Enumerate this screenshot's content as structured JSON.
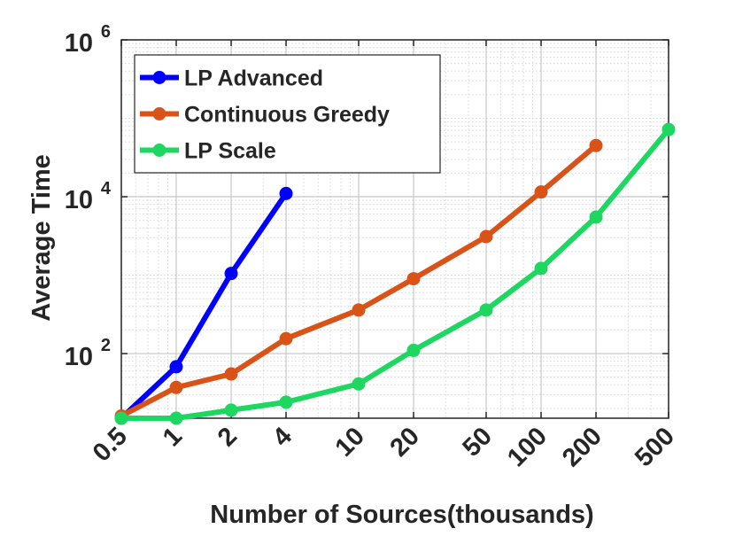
{
  "chart_data": {
    "type": "line",
    "title": "",
    "xlabel": "Number of Sources(thousands)",
    "ylabel": "Average Time",
    "x_scale": "log",
    "y_scale": "log",
    "xlim": [
      0.5,
      500
    ],
    "ylim": [
      15,
      1000000
    ],
    "grid": true,
    "legend_position": "top-left",
    "x_ticks": [
      0.5,
      1,
      2,
      4,
      10,
      20,
      50,
      100,
      200,
      500
    ],
    "x_tick_labels": [
      "0.5",
      "1",
      "2",
      "4",
      "10",
      "20",
      "50",
      "100",
      "200",
      "500"
    ],
    "y_ticks": [
      {
        "value": 100,
        "base": "10",
        "exp": "2"
      },
      {
        "value": 10000,
        "base": "10",
        "exp": "4"
      },
      {
        "value": 1000000,
        "base": "10",
        "exp": "6"
      }
    ],
    "series": [
      {
        "name": "LP Advanced",
        "color": "#0000ff",
        "x": [
          0.5,
          1,
          2,
          4
        ],
        "y": [
          15,
          68,
          1050,
          11000
        ]
      },
      {
        "name": "Continuous Greedy",
        "color": "#d95319",
        "x": [
          0.5,
          1,
          2,
          4,
          10,
          20,
          50,
          100,
          200
        ],
        "y": [
          16,
          37,
          55,
          155,
          360,
          900,
          3100,
          11500,
          45000
        ]
      },
      {
        "name": "LP Scale",
        "color": "#1ed760",
        "x": [
          0.5,
          1,
          2,
          4,
          10,
          20,
          50,
          100,
          200,
          500
        ],
        "y": [
          15,
          15,
          19,
          24,
          41,
          110,
          360,
          1220,
          5500,
          72000
        ]
      }
    ]
  }
}
